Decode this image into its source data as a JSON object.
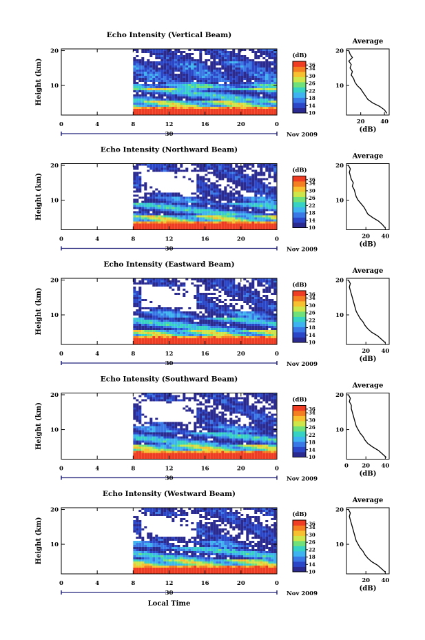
{
  "colors": {
    "scale": [
      "#2a2a90",
      "#2c46c8",
      "#3a78e6",
      "#3fb2f0",
      "#38d2c4",
      "#6fe07a",
      "#cfe64a",
      "#f6c030",
      "#f47e22",
      "#ee3d22"
    ],
    "background": "#ffffff",
    "axis": "#000000",
    "date_marker": "#22227a"
  },
  "chart_data": [
    {
      "type": "heatmap",
      "title": "Echo Intensity (Vertical Beam)",
      "ylabel": "Height (km)",
      "x_ticks": [
        "0",
        "4",
        "8",
        "12",
        "16",
        "20",
        "0"
      ],
      "x_range": [
        0,
        24
      ],
      "y_ticks": [
        "20",
        "10"
      ],
      "y_range": [
        1.5,
        20.5
      ],
      "date_label": "30",
      "month_label": "Nov 2009",
      "data_start_hour": 8,
      "colorbar": {
        "unit": "(dB)",
        "ticks": [
          "36",
          "34",
          "30",
          "26",
          "22",
          "18",
          "14",
          "10"
        ],
        "range": [
          10,
          38
        ]
      },
      "average_profile": {
        "title": "Average",
        "xlabel": "(dB)",
        "x_ticks": [
          "20",
          "40"
        ],
        "x_range": [
          8,
          44
        ],
        "y_ticks": [
          "20",
          "10"
        ],
        "heights": [
          2,
          3,
          4,
          5,
          6,
          7,
          8,
          9,
          10,
          11,
          12,
          13,
          14,
          15,
          16,
          17,
          18,
          19,
          20
        ],
        "values": [
          42,
          40,
          36,
          30,
          26,
          24,
          22,
          20,
          17,
          15,
          14,
          12,
          13,
          11,
          12,
          10,
          13,
          11,
          10
        ]
      }
    },
    {
      "type": "heatmap",
      "title": "Echo Intensity (Northward Beam)",
      "ylabel": "Height (km)",
      "x_ticks": [
        "0",
        "4",
        "8",
        "12",
        "16",
        "20",
        "0"
      ],
      "x_range": [
        0,
        24
      ],
      "y_ticks": [
        "20",
        "10"
      ],
      "y_range": [
        1.5,
        20.5
      ],
      "date_label": "30",
      "month_label": "Nov 2009",
      "data_start_hour": 8,
      "colorbar": {
        "unit": "(dB)",
        "ticks": [
          "36",
          "34",
          "30",
          "26",
          "22",
          "18",
          "14",
          "10"
        ],
        "range": [
          10,
          38
        ]
      },
      "average_profile": {
        "title": "Average",
        "xlabel": "(dB)",
        "x_ticks": [
          "20",
          "40"
        ],
        "x_range": [
          0,
          44
        ],
        "y_ticks": [
          "20",
          "10"
        ],
        "heights": [
          2,
          3,
          4,
          5,
          6,
          7,
          8,
          9,
          10,
          11,
          12,
          13,
          14,
          15,
          16,
          17,
          18,
          19,
          20
        ],
        "values": [
          40,
          37,
          33,
          27,
          22,
          20,
          18,
          15,
          12,
          10,
          9,
          8,
          6,
          7,
          5,
          4,
          3,
          4,
          2
        ]
      }
    },
    {
      "type": "heatmap",
      "title": "Echo Intensity (Eastward Beam)",
      "ylabel": "Height (km)",
      "x_ticks": [
        "0",
        "4",
        "8",
        "12",
        "16",
        "20",
        "0"
      ],
      "x_range": [
        0,
        24
      ],
      "y_ticks": [
        "20",
        "10"
      ],
      "y_range": [
        1.5,
        20.5
      ],
      "date_label": "30",
      "month_label": "Nov 2009",
      "data_start_hour": 8,
      "colorbar": {
        "unit": "(dB)",
        "ticks": [
          "36",
          "34",
          "30",
          "26",
          "22",
          "18",
          "14",
          "10"
        ],
        "range": [
          10,
          38
        ]
      },
      "average_profile": {
        "title": "Average",
        "xlabel": "(dB)",
        "x_ticks": [
          "20",
          "40"
        ],
        "x_range": [
          0,
          44
        ],
        "y_ticks": [
          "20",
          "10"
        ],
        "heights": [
          2,
          3,
          4,
          5,
          6,
          7,
          8,
          9,
          10,
          11,
          12,
          13,
          14,
          15,
          16,
          17,
          18,
          19,
          20
        ],
        "values": [
          40,
          36,
          32,
          26,
          22,
          19,
          17,
          14,
          12,
          10,
          9,
          8,
          7,
          6,
          5,
          4,
          3,
          4,
          2
        ]
      }
    },
    {
      "type": "heatmap",
      "title": "Echo Intensity (Southward Beam)",
      "ylabel": "Height (km)",
      "x_ticks": [
        "0",
        "4",
        "8",
        "12",
        "16",
        "20",
        "0"
      ],
      "x_range": [
        0,
        24
      ],
      "y_ticks": [
        "20",
        "10"
      ],
      "y_range": [
        1.5,
        20.5
      ],
      "date_label": "30",
      "month_label": "Nov 2009",
      "data_start_hour": 8,
      "colorbar": {
        "unit": "(dB)",
        "ticks": [
          "36",
          "34",
          "30",
          "26",
          "22",
          "18",
          "14",
          "10"
        ],
        "range": [
          10,
          38
        ]
      },
      "average_profile": {
        "title": "Average",
        "xlabel": "(dB)",
        "x_ticks": [
          "0",
          "20",
          "40"
        ],
        "x_range": [
          0,
          44
        ],
        "y_ticks": [
          "20",
          "10"
        ],
        "heights": [
          2,
          3,
          4,
          5,
          6,
          7,
          8,
          9,
          10,
          11,
          12,
          13,
          14,
          15,
          16,
          17,
          18,
          19,
          20
        ],
        "values": [
          41,
          37,
          33,
          27,
          22,
          19,
          17,
          14,
          12,
          10,
          9,
          8,
          7,
          6,
          5,
          5,
          3,
          4,
          2
        ]
      }
    },
    {
      "type": "heatmap",
      "title": "Echo Intensity (Westward Beam)",
      "ylabel": "Height (km)",
      "x_ticks": [
        "0",
        "4",
        "8",
        "12",
        "16",
        "20",
        "0"
      ],
      "x_range": [
        0,
        24
      ],
      "y_ticks": [
        "20",
        "10"
      ],
      "y_range": [
        1.5,
        20.5
      ],
      "date_label": "30",
      "month_label": "Nov 2009",
      "data_start_hour": 8,
      "xlabel": "Local Time",
      "colorbar": {
        "unit": "(dB)",
        "ticks": [
          "36",
          "34",
          "30",
          "26",
          "22",
          "18",
          "14",
          "10"
        ],
        "range": [
          10,
          38
        ]
      },
      "average_profile": {
        "title": "Average",
        "xlabel": "(dB)",
        "x_ticks": [
          "20",
          "40"
        ],
        "x_range": [
          0,
          44
        ],
        "y_ticks": [
          "20",
          "10"
        ],
        "heights": [
          2,
          3,
          4,
          5,
          6,
          7,
          8,
          9,
          10,
          11,
          12,
          13,
          14,
          15,
          16,
          17,
          18,
          19,
          20
        ],
        "values": [
          40,
          36,
          32,
          26,
          22,
          19,
          17,
          14,
          12,
          10,
          9,
          8,
          7,
          6,
          5,
          4,
          3,
          4,
          2
        ]
      }
    }
  ]
}
